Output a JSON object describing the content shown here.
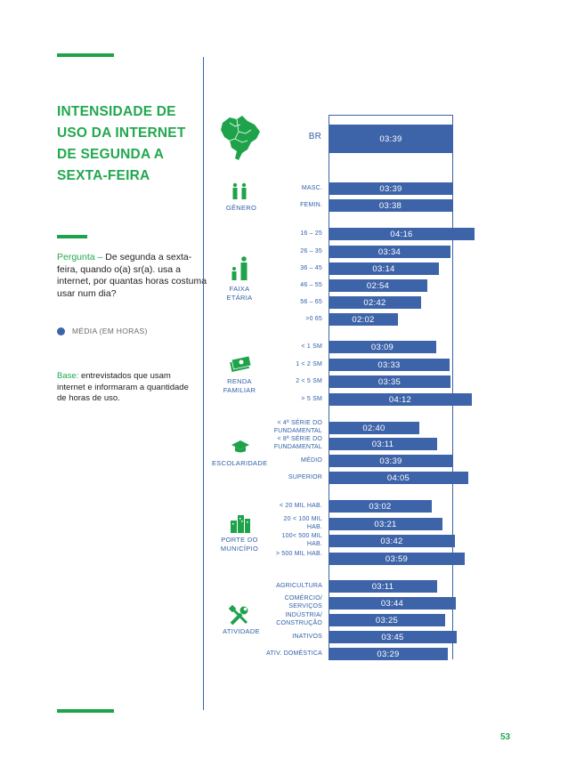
{
  "title": "INTENSIDADE DE USO DA INTERNET DE SEGUNDA A SEXTA-FEIRA",
  "question_label": "Pergunta – ",
  "question_text": "De segunda a sexta-feira, quando o(a) sr(a). usa a internet, por quantas horas costuma usar num dia?",
  "legend_label": "MÉDIA (EM HORAS)",
  "base_label": "Base: ",
  "base_text": "entrevistados que usam internet e informaram a quantidade de horas de uso.",
  "page_number": "53",
  "colors": {
    "accent_green": "#22a84f",
    "bar_blue": "#3d63a9",
    "label_blue": "#2f5fa8"
  },
  "groups": [
    {
      "id": "br",
      "label": "",
      "icon": "brazil-map-icon"
    },
    {
      "id": "genero",
      "label": "GÊNERO",
      "icon": "people-icon"
    },
    {
      "id": "faixa",
      "label": "FAIXA ETÁRIA",
      "icon": "family-icon"
    },
    {
      "id": "renda",
      "label": "RENDA FAMILIAR",
      "icon": "money-icon"
    },
    {
      "id": "escolaridade",
      "label": "ESCOLARIDADE",
      "icon": "graduation-cap-icon"
    },
    {
      "id": "porte",
      "label": "PORTE DO MUNICÍPIO",
      "icon": "buildings-icon"
    },
    {
      "id": "atividade",
      "label": "ATIVIDADE",
      "icon": "tools-icon"
    }
  ],
  "chart_data": {
    "type": "bar",
    "orientation": "horizontal",
    "unit": "hours (hh:mm)",
    "xlim_minutes": [
      0,
      300
    ],
    "rows": [
      {
        "group": "br",
        "category": "BR",
        "label": "03:39",
        "minutes": 219
      },
      {
        "group": "genero",
        "category": "MASC.",
        "label": "03:39",
        "minutes": 219
      },
      {
        "group": "genero",
        "category": "FEMIN.",
        "label": "03:38",
        "minutes": 218
      },
      {
        "group": "faixa",
        "category": "16 – 25",
        "label": "04:16",
        "minutes": 256
      },
      {
        "group": "faixa",
        "category": "26 – 35",
        "label": "03:34",
        "minutes": 214
      },
      {
        "group": "faixa",
        "category": "36 – 45",
        "label": "03:14",
        "minutes": 194
      },
      {
        "group": "faixa",
        "category": "46 – 55",
        "label": "02:54",
        "minutes": 174
      },
      {
        "group": "faixa",
        "category": "56 – 65",
        "label": "02:42",
        "minutes": 162
      },
      {
        "group": "faixa",
        "category": ">0 65",
        "label": "02:02",
        "minutes": 122
      },
      {
        "group": "renda",
        "category": "< 1 SM",
        "label": "03:09",
        "minutes": 189
      },
      {
        "group": "renda",
        "category": "1 < 2 SM",
        "label": "03:33",
        "minutes": 213
      },
      {
        "group": "renda",
        "category": "2 < 5 SM",
        "label": "03:35",
        "minutes": 215
      },
      {
        "group": "renda",
        "category": "> 5 SM",
        "label": "04:12",
        "minutes": 252
      },
      {
        "group": "escolaridade",
        "category": "< 4ª SÉRIE DO FUNDAMENTAL",
        "label": "02:40",
        "minutes": 160
      },
      {
        "group": "escolaridade",
        "category": "< 8ª SÉRIE DO FUNDAMENTAL",
        "label": "03:11",
        "minutes": 191
      },
      {
        "group": "escolaridade",
        "category": "MÉDIO",
        "label": "03:39",
        "minutes": 219
      },
      {
        "group": "escolaridade",
        "category": "SUPERIOR",
        "label": "04:05",
        "minutes": 245
      },
      {
        "group": "porte",
        "category": "< 20 MIL HAB.",
        "label": "03:02",
        "minutes": 182
      },
      {
        "group": "porte",
        "category": "20 < 100 MIL HAB.",
        "label": "03:21",
        "minutes": 201
      },
      {
        "group": "porte",
        "category": "100< 500 MIL HAB.",
        "label": "03:42",
        "minutes": 222
      },
      {
        "group": "porte",
        "category": "> 500 MIL HAB.",
        "label": "03:59",
        "minutes": 239
      },
      {
        "group": "atividade",
        "category": "AGRICULTURA",
        "label": "03:11",
        "minutes": 191
      },
      {
        "group": "atividade",
        "category": "COMÉRCIO/ SERVIÇOS",
        "label": "03:44",
        "minutes": 224
      },
      {
        "group": "atividade",
        "category": "INDÚSTRIA/ CONSTRUÇÃO",
        "label": "03:25",
        "minutes": 205
      },
      {
        "group": "atividade",
        "category": "INATIVOS",
        "label": "03:45",
        "minutes": 225
      },
      {
        "group": "atividade",
        "category": "ATIV. DOMÉSTICA",
        "label": "03:29",
        "minutes": 209
      }
    ]
  }
}
